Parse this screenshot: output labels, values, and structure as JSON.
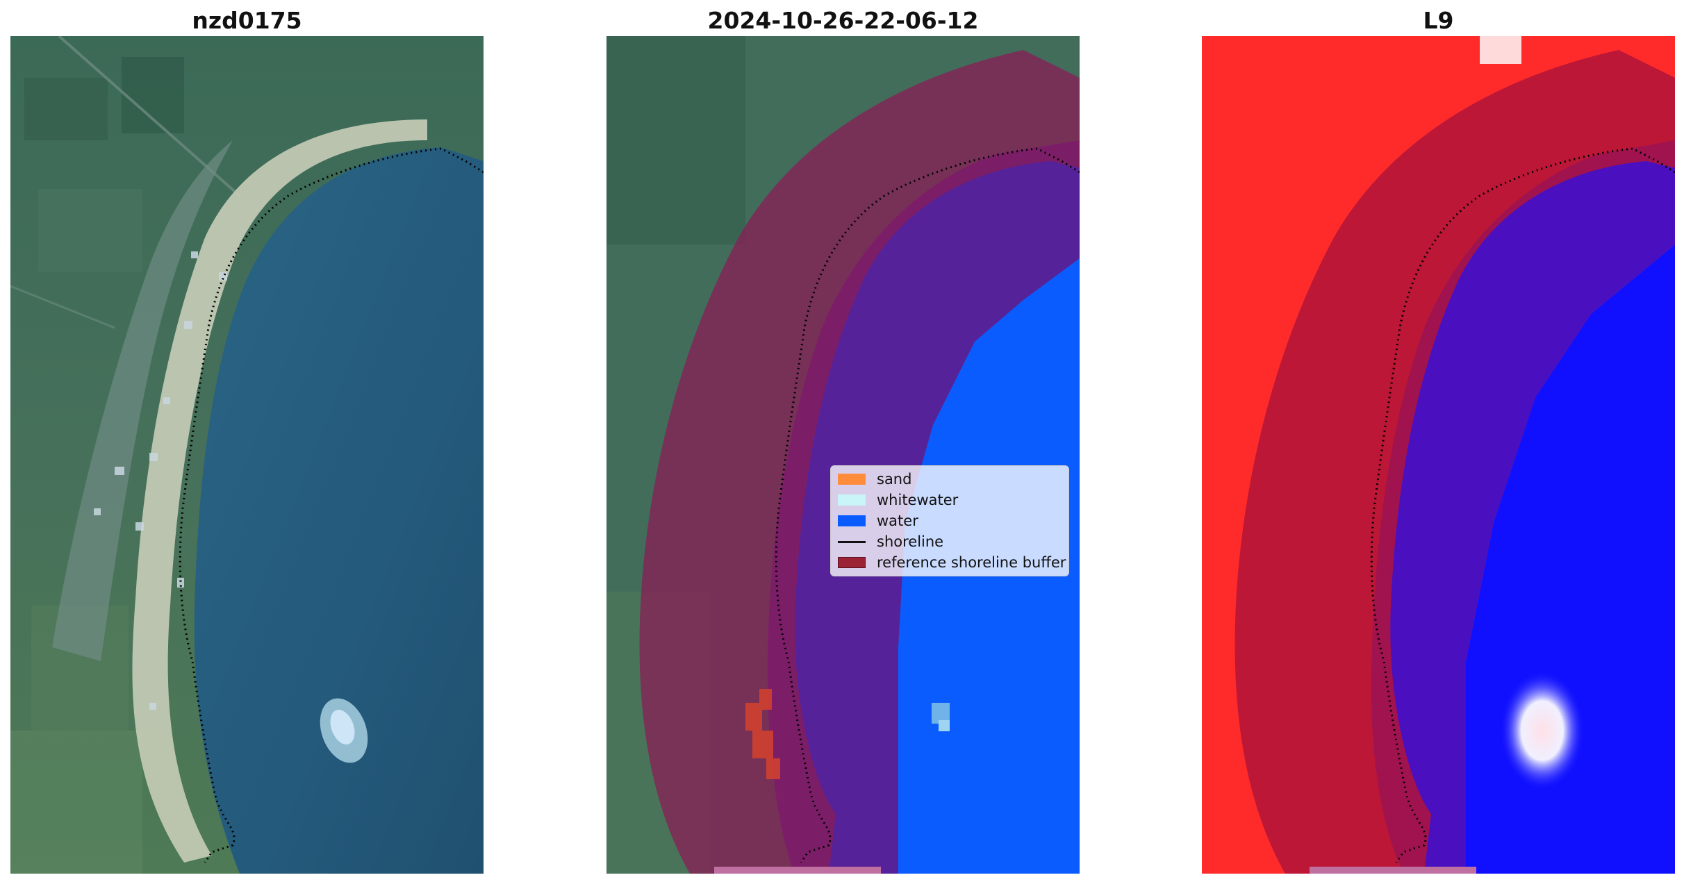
{
  "panels": [
    {
      "title": "nzd0175"
    },
    {
      "title": "2024-10-26-22-06-12"
    },
    {
      "title": "L9"
    }
  ],
  "legend": {
    "items": [
      {
        "label": "sand",
        "color": "#ff8c3a"
      },
      {
        "label": "whitewater",
        "color": "#c9f5f8"
      },
      {
        "label": "water",
        "color": "#0a5cff"
      },
      {
        "label": "shoreline",
        "color": "#111111"
      },
      {
        "label": "reference shoreline buffer",
        "color": "#9b2335"
      }
    ]
  },
  "colors": {
    "sea_rgb": "#245b7e",
    "land_green": "#3f6a55",
    "buffer_overlay": "#8a1e55",
    "classified_water": "#0a5cff",
    "classified_deep": "#55229a",
    "index_land": "#ff2a2a",
    "index_water": "#1010ff"
  }
}
